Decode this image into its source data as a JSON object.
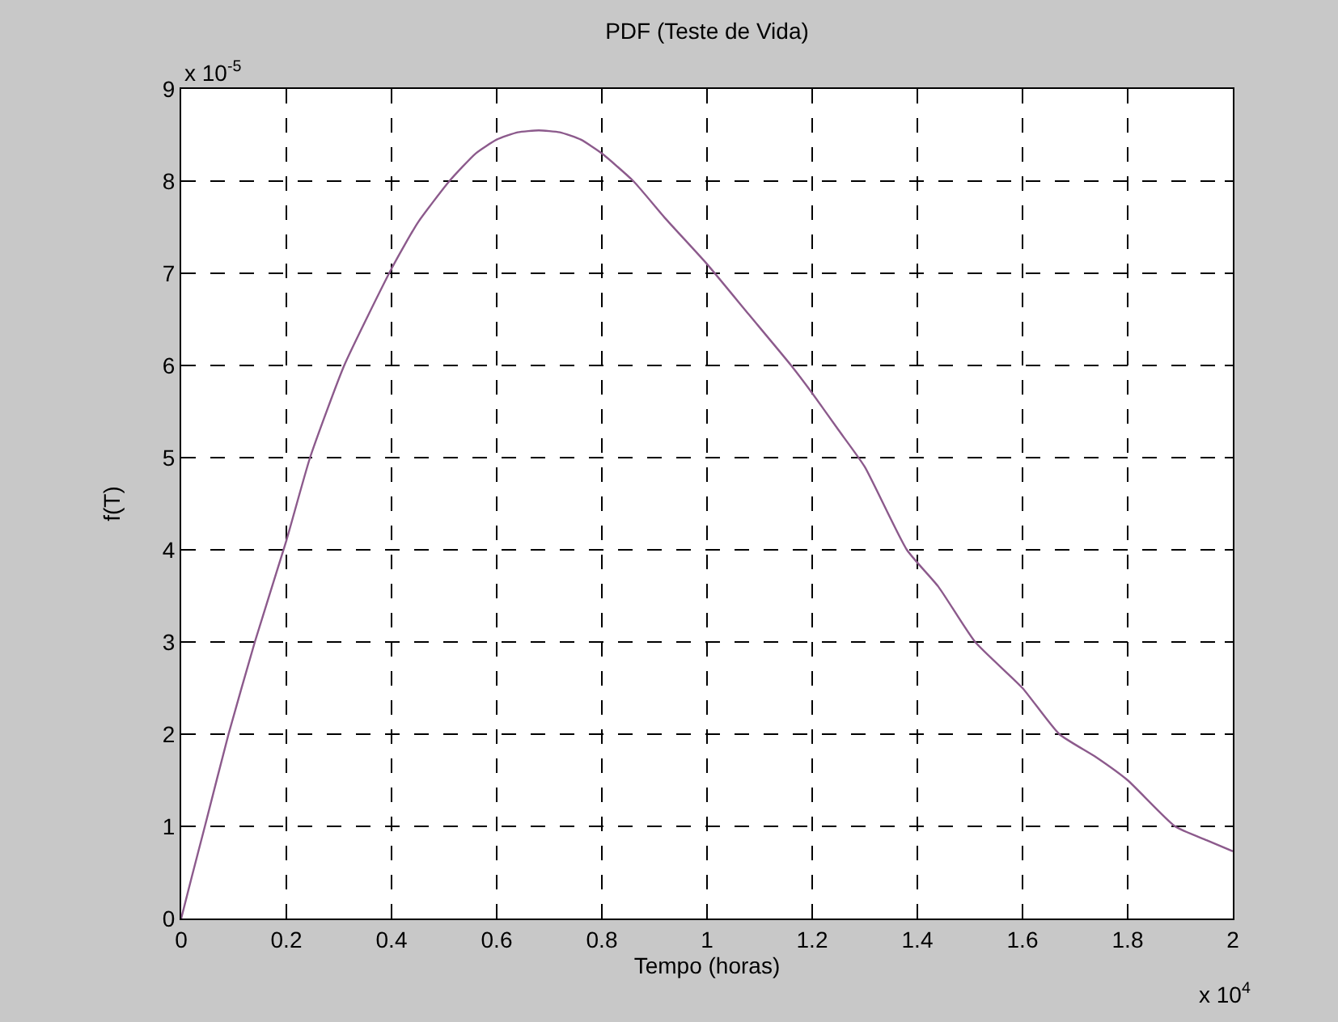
{
  "chart_data": {
    "type": "line",
    "title": "PDF (Teste de Vida)",
    "xlabel": "Tempo (horas)",
    "ylabel": "f(T)",
    "annotations": [
      "x 10$^{4}$",
      "x 10$^{-5}$"
    ],
    "x": [
      0,
      0.02,
      0.045,
      0.09,
      0.14,
      0.2,
      0.245,
      0.31,
      0.4,
      0.45,
      0.51,
      0.56,
      0.6,
      0.64,
      0.68,
      0.72,
      0.76,
      0.8,
      0.86,
      0.92,
      1.0,
      1.08,
      1.16,
      1.2,
      1.25,
      1.3,
      1.38,
      1.44,
      1.51,
      1.6,
      1.67,
      1.74,
      1.8,
      1.89,
      1.95,
      2.0
    ],
    "series": [
      {
        "color": "#8c5a8c",
        "values": [
          0,
          0.45,
          1,
          2,
          3,
          4.1,
          5,
          6,
          7.05,
          7.55,
          8,
          8.3,
          8.45,
          8.53,
          8.55,
          8.53,
          8.45,
          8.3,
          8,
          7.6,
          7.1,
          6.55,
          6,
          5.7,
          5.3,
          4.9,
          4,
          3.6,
          3,
          2.5,
          2,
          1.75,
          1.5,
          1,
          0.85,
          0.73
        ]
      }
    ],
    "xlim": [
      0,
      2
    ],
    "xticks": [
      0,
      0.2,
      0.4,
      0.6,
      0.8,
      1,
      1.2,
      1.4,
      1.6,
      1.8,
      2
    ],
    "ylim": [
      0,
      9
    ],
    "yticks": [
      0,
      1,
      2,
      3,
      4,
      5,
      6,
      7,
      8,
      9
    ],
    "grid": true,
    "marker": "none",
    "line_style": "solid"
  }
}
